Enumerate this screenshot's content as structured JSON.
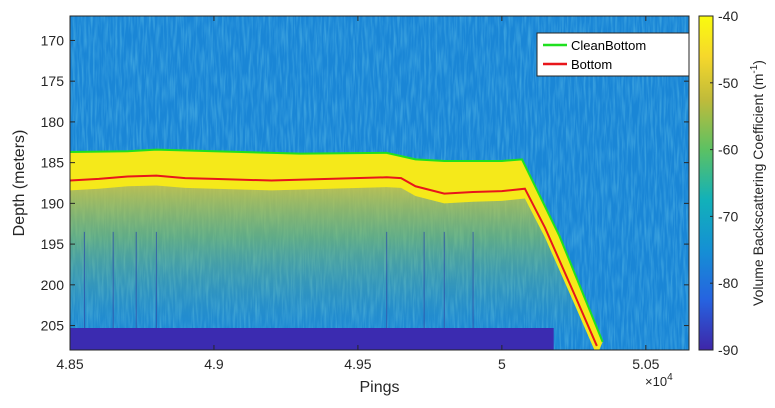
{
  "chart_data": {
    "type": "heatmap",
    "title": "",
    "xlabel": "Pings",
    "ylabel": "Depth (meters)",
    "x_multiplier_label": "×10",
    "x_multiplier_exponent": "4",
    "xlim": [
      4.85,
      5.065
    ],
    "ylim": [
      167,
      208
    ],
    "y_reversed": true,
    "x_ticks": [
      4.85,
      4.9,
      4.95,
      5,
      5.05
    ],
    "x_tick_labels": [
      "4.85",
      "4.9",
      "4.95",
      "5",
      "5.05"
    ],
    "y_ticks": [
      170,
      175,
      180,
      185,
      190,
      195,
      200,
      205
    ],
    "y_tick_labels": [
      "170",
      "175",
      "180",
      "185",
      "190",
      "195",
      "200",
      "205"
    ],
    "colorbar": {
      "label_prefix": "Volume Backscattering Coefficient (m",
      "label_sup": "-1",
      "label_suffix": ")",
      "range": [
        -90,
        -40
      ],
      "ticks": [
        -40,
        -50,
        -60,
        -70,
        -80,
        -90
      ],
      "tick_labels": [
        "-40",
        "-50",
        "-60",
        "-70",
        "-80",
        "-90"
      ],
      "colormap": "parula"
    },
    "legend": {
      "placement": "top-right",
      "entries": [
        {
          "name": "CleanBottom",
          "color": "#1fe01f"
        },
        {
          "name": "Bottom",
          "color": "#e8161b"
        }
      ]
    },
    "series": [
      {
        "name": "CleanBottom",
        "color": "#1fe01f",
        "x": [
          4.85,
          4.87,
          4.88,
          4.9,
          4.93,
          4.96,
          4.97,
          4.98,
          5.0,
          5.007,
          5.02,
          5.035
        ],
        "y": [
          183.7,
          183.6,
          183.4,
          183.6,
          183.9,
          183.8,
          184.6,
          184.8,
          184.8,
          184.6,
          194.0,
          207.0
        ]
      },
      {
        "name": "Bottom",
        "color": "#e8161b",
        "x": [
          4.85,
          4.86,
          4.87,
          4.88,
          4.89,
          4.9,
          4.92,
          4.94,
          4.96,
          4.965,
          4.97,
          4.98,
          4.99,
          5.0,
          5.008,
          5.015,
          5.025,
          5.033
        ],
        "y": [
          187.2,
          187.0,
          186.7,
          186.6,
          186.9,
          187.0,
          187.2,
          187.0,
          186.8,
          186.9,
          187.9,
          188.8,
          188.6,
          188.5,
          188.2,
          193.0,
          201.0,
          207.5
        ]
      }
    ]
  }
}
